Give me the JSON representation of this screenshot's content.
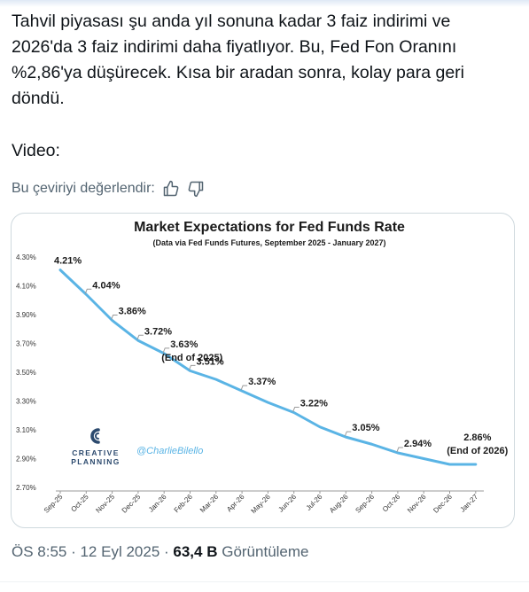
{
  "tweet": {
    "text_lines": [
      "Tahvil piyasası şu anda yıl sonuna kadar 3 faiz indirimi ve",
      "2026'da 3 faiz indirimi daha fiyatlıyor. Bu, Fed Fon Oranını",
      "%2,86'ya düşürecek. Kısa bir aradan sonra, kolay para geri",
      "döndü."
    ],
    "video_label": "Video:",
    "translate_prompt": "Bu çeviriyi değerlendir:",
    "timestamp": "ÖS 8:55 · 12 Eyl 2025 ·",
    "views_count": "63,4 B",
    "views_label": "Görüntüleme"
  },
  "icons": {
    "good": "thumbs-up-icon",
    "bad": "thumbs-down-icon"
  },
  "colors": {
    "line": "#5ab4e5",
    "text": "#0f1419",
    "muted": "#536471",
    "brand": "#2c4a6e"
  },
  "brand": {
    "name_line1": "CREATIVE",
    "name_line2": "PLANNING",
    "handle": "@CharlieBilello"
  },
  "chart_data": {
    "type": "line",
    "title": "Market Expectations for Fed Funds Rate",
    "subtitle": "(Data via Fed Funds Futures, September 2025 - January 2027)",
    "x": [
      "Sep-25",
      "Oct-25",
      "Nov-25",
      "Dec-25",
      "Jan-26",
      "Feb-26",
      "Mar-26",
      "Apr-26",
      "May-26",
      "Jun-26",
      "Jul-26",
      "Aug-26",
      "Sep-26",
      "Oct-26",
      "Nov-26",
      "Dec-26",
      "Jan-27"
    ],
    "series": [
      {
        "values": [
          4.21,
          4.04,
          3.86,
          3.72,
          3.63,
          3.51,
          3.45,
          3.37,
          3.29,
          3.22,
          3.12,
          3.05,
          3.0,
          2.94,
          2.9,
          2.86,
          2.86
        ]
      }
    ],
    "ylim": [
      2.7,
      4.3
    ],
    "yticks": [
      "4.30%",
      "4.10%",
      "3.90%",
      "3.70%",
      "3.50%",
      "3.30%",
      "3.10%",
      "2.90%",
      "2.70%"
    ],
    "annotations": [
      {
        "x_index": 0,
        "label": "4.21%"
      },
      {
        "x_index": 1,
        "label": "4.04%"
      },
      {
        "x_index": 2,
        "label": "3.86%"
      },
      {
        "x_index": 3,
        "label": "3.72%"
      },
      {
        "x_index": 4,
        "label": "3.63%",
        "note": "(End of 2025)"
      },
      {
        "x_index": 5,
        "label": "3.51%"
      },
      {
        "x_index": 7,
        "label": "3.37%"
      },
      {
        "x_index": 9,
        "label": "3.22%"
      },
      {
        "x_index": 11,
        "label": "3.05%"
      },
      {
        "x_index": 13,
        "label": "2.94%"
      },
      {
        "x_index": 16,
        "label": "2.86%",
        "note": "(End of 2026)"
      }
    ],
    "grid": false,
    "legend": "none"
  }
}
